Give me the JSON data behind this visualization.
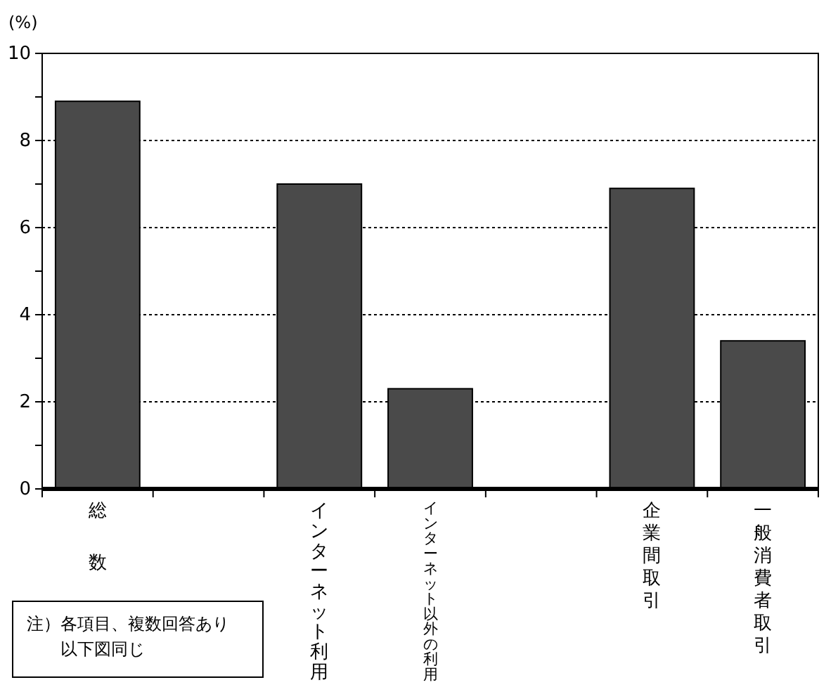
{
  "chart_data": {
    "type": "bar",
    "ylabel": "(%)",
    "categories": [
      "総数",
      null,
      "インターネット利用",
      "インターネット以外の利用",
      null,
      "企業間取引",
      "一般消費者取引"
    ],
    "values": [
      8.9,
      null,
      7.0,
      2.3,
      null,
      6.9,
      3.4
    ],
    "color": "#4a4a4a",
    "ylim": [
      0,
      10
    ],
    "yticks": [
      0,
      {
        "value": 1,
        "label": null
      },
      2,
      {
        "value": 3,
        "label": null
      },
      4,
      {
        "value": 5,
        "label": null
      },
      6,
      {
        "value": 7,
        "label": null
      },
      8,
      {
        "value": 9,
        "label": null
      },
      10
    ],
    "grid": "y",
    "annotations": [
      "注）各項目、複数回答あり以下図同じ"
    ]
  }
}
